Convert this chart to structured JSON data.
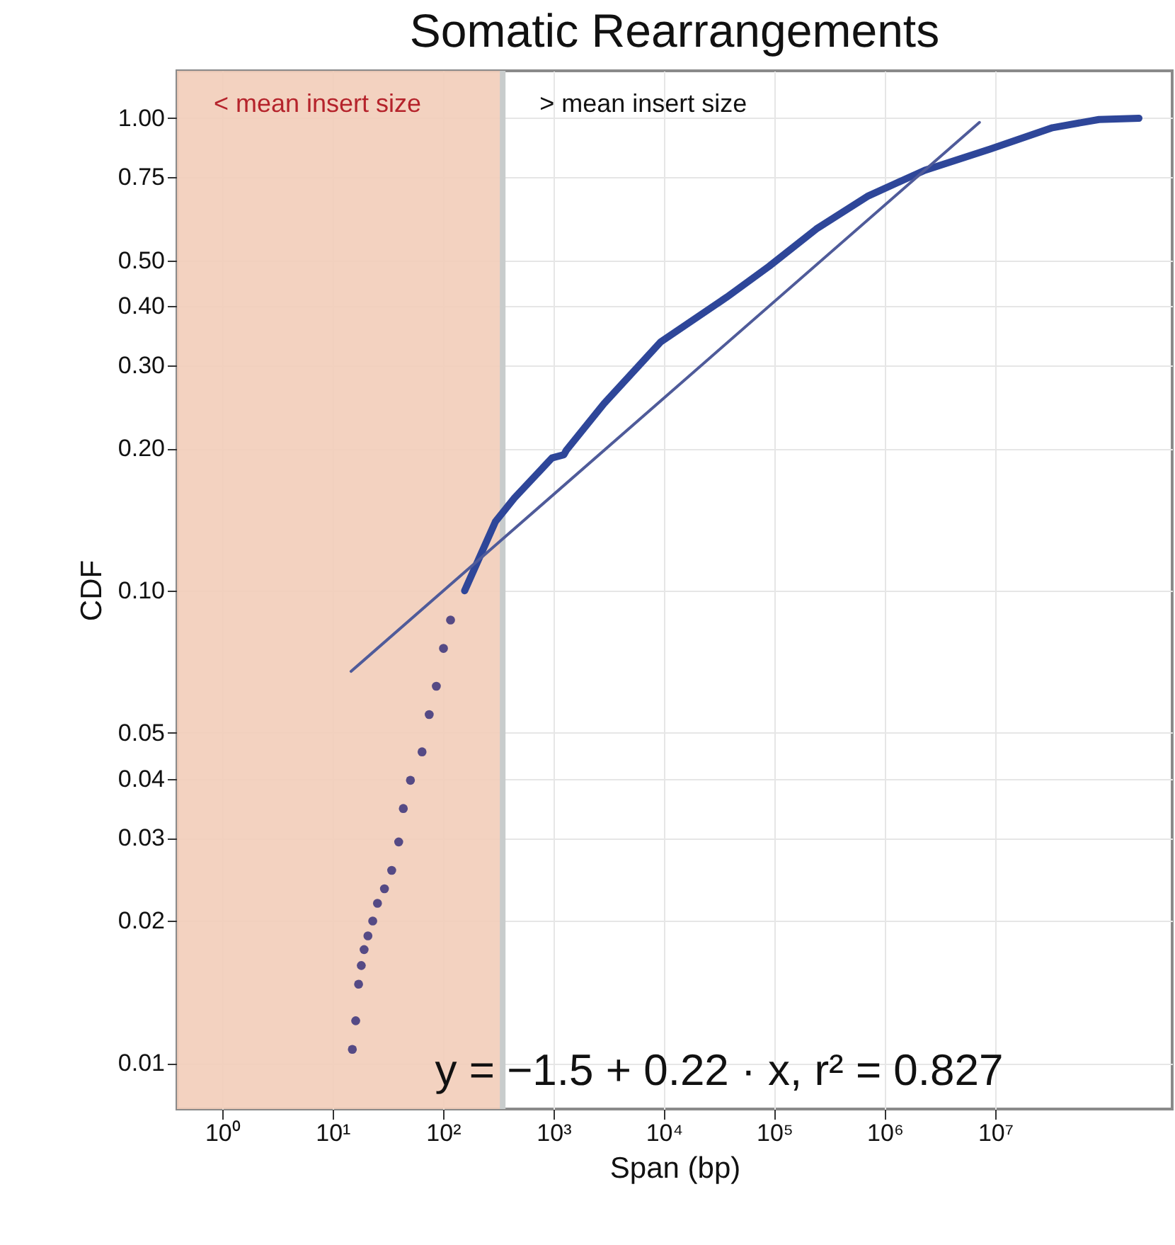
{
  "chart_data": {
    "type": "scatter",
    "title": "Somatic Rearrangements",
    "xlabel": "Span (bp)",
    "ylabel": "CDF",
    "log": "xy",
    "grid": true,
    "xlim": [
      0.39,
      400000000
    ],
    "ylim": [
      0.008,
      1.26
    ],
    "xticks": [
      {
        "value": 1,
        "label": "10⁰"
      },
      {
        "value": 10,
        "label": "10¹"
      },
      {
        "value": 100,
        "label": "10²"
      },
      {
        "value": 1000,
        "label": "10³"
      },
      {
        "value": 10000,
        "label": "10⁴"
      },
      {
        "value": 100000,
        "label": "10⁵"
      },
      {
        "value": 1000000,
        "label": "10⁶"
      },
      {
        "value": 10000000,
        "label": "10⁷"
      }
    ],
    "yticks": [
      {
        "value": 0.01,
        "label": "0.01"
      },
      {
        "value": 0.02,
        "label": "0.02"
      },
      {
        "value": 0.03,
        "label": "0.03"
      },
      {
        "value": 0.04,
        "label": "0.04"
      },
      {
        "value": 0.05,
        "label": "0.05"
      },
      {
        "value": 0.1,
        "label": "0.10"
      },
      {
        "value": 0.2,
        "label": "0.20"
      },
      {
        "value": 0.3,
        "label": "0.30"
      },
      {
        "value": 0.4,
        "label": "0.40"
      },
      {
        "value": 0.5,
        "label": "0.50"
      },
      {
        "value": 0.75,
        "label": "0.75"
      },
      {
        "value": 1,
        "label": "1.00"
      }
    ],
    "bands": [
      {
        "axis": "x",
        "from": 0.39,
        "to": 347,
        "label": "< mean insert size",
        "color": "#f2cdb9"
      }
    ],
    "ref_lines": [
      {
        "axis": "x",
        "value": 347,
        "label": "> mean insert size",
        "color": "#c8cccc"
      }
    ],
    "annotations": [
      "y = −1.5 + 0.22 · x,  r² = 0.827"
    ],
    "series": [
      {
        "type": "scatter",
        "marker": "circle",
        "color": "#554a85",
        "x": [
          15.1,
          16.2,
          17.2,
          18.2,
          19.3,
          20.9,
          23.1,
          25.5,
          29.5,
          34.3,
          39.7,
          43.7,
          50.7,
          64.6,
          75,
          87,
          101,
          117
        ],
        "values": [
          0.0107,
          0.0123,
          0.0147,
          0.0161,
          0.0174,
          0.0186,
          0.02,
          0.0218,
          0.0234,
          0.0256,
          0.0294,
          0.0346,
          0.0397,
          0.0456,
          0.0547,
          0.0628,
          0.0755,
          0.0867
        ]
      },
      {
        "type": "line",
        "color": "#2e4699",
        "x": [
          157,
          298,
          442,
          970,
          1242,
          1303,
          2870,
          9340,
          37000,
          89700,
          240000,
          710000,
          2300000,
          9100000,
          33000000,
          87000000,
          200000000
        ],
        "values": [
          0.1,
          0.14,
          0.157,
          0.191,
          0.194,
          0.198,
          0.249,
          0.336,
          0.418,
          0.486,
          0.583,
          0.685,
          0.776,
          0.861,
          0.955,
          0.994,
          1.0
        ]
      },
      {
        "type": "line",
        "color": "#4f5b9a",
        "x": [
          14.7,
          7200000
        ],
        "values": [
          0.0675,
          0.98
        ]
      }
    ]
  }
}
